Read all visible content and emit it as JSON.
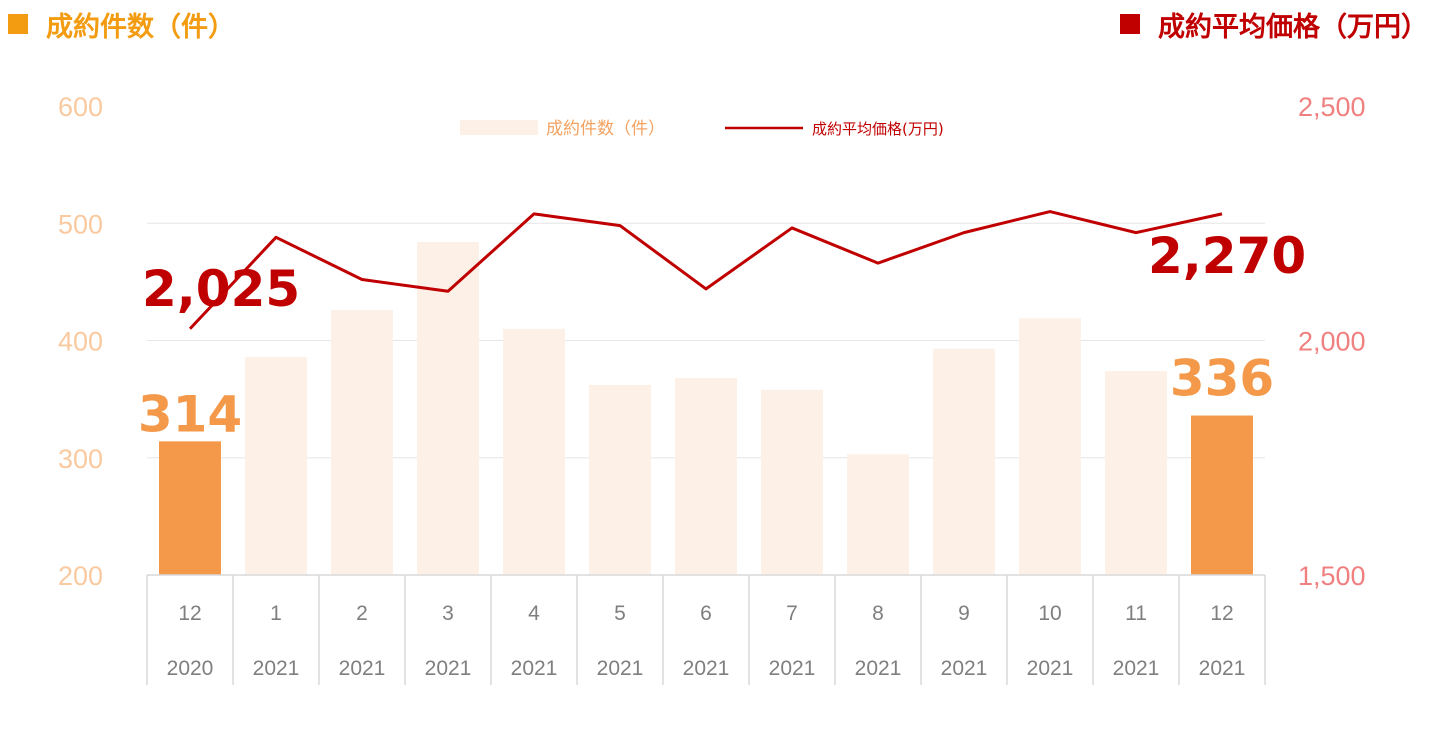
{
  "header": {
    "left_title": "成約件数（件）",
    "right_title": "成約平均価格（万円）",
    "left_color": "#F39C12",
    "right_color": "#C00000"
  },
  "legend": {
    "bar_label": "成約件数（件）",
    "line_label": "成約平均価格(万円)"
  },
  "chart_data": {
    "type": "bar+line",
    "categories": [
      {
        "month": "12",
        "year": "2020"
      },
      {
        "month": "1",
        "year": "2021"
      },
      {
        "month": "2",
        "year": "2021"
      },
      {
        "month": "3",
        "year": "2021"
      },
      {
        "month": "4",
        "year": "2021"
      },
      {
        "month": "5",
        "year": "2021"
      },
      {
        "month": "6",
        "year": "2021"
      },
      {
        "month": "7",
        "year": "2021"
      },
      {
        "month": "8",
        "year": "2021"
      },
      {
        "month": "9",
        "year": "2021"
      },
      {
        "month": "10",
        "year": "2021"
      },
      {
        "month": "11",
        "year": "2021"
      },
      {
        "month": "12",
        "year": "2021"
      }
    ],
    "series": [
      {
        "name": "成約件数（件）",
        "type": "bar",
        "axis": "left",
        "values": [
          314,
          386,
          426,
          484,
          410,
          362,
          368,
          358,
          303,
          393,
          419,
          374,
          336
        ],
        "highlight_indices": [
          0,
          12
        ],
        "color": "#F4994A",
        "faded_color": "#FDF0E6"
      },
      {
        "name": "成約平均価格(万円)",
        "type": "line",
        "axis": "right",
        "values": [
          2025,
          2220,
          2130,
          2105,
          2270,
          2245,
          2110,
          2240,
          2165,
          2230,
          2275,
          2230,
          2270
        ],
        "color": "#C00000"
      }
    ],
    "left_axis": {
      "min": 200,
      "max": 600,
      "ticks": [
        "600",
        "500",
        "400",
        "300",
        "200"
      ],
      "tick_values": [
        600,
        500,
        400,
        300,
        200
      ]
    },
    "right_axis": {
      "min": 1500,
      "max": 2500,
      "ticks": [
        "2,500",
        "2,000",
        "1,500"
      ],
      "tick_values": [
        2500,
        2000,
        1500
      ]
    },
    "data_labels": {
      "bar_first": "314",
      "bar_last": "336",
      "line_first": "2,025",
      "line_last": "2,270"
    },
    "grid": true
  }
}
